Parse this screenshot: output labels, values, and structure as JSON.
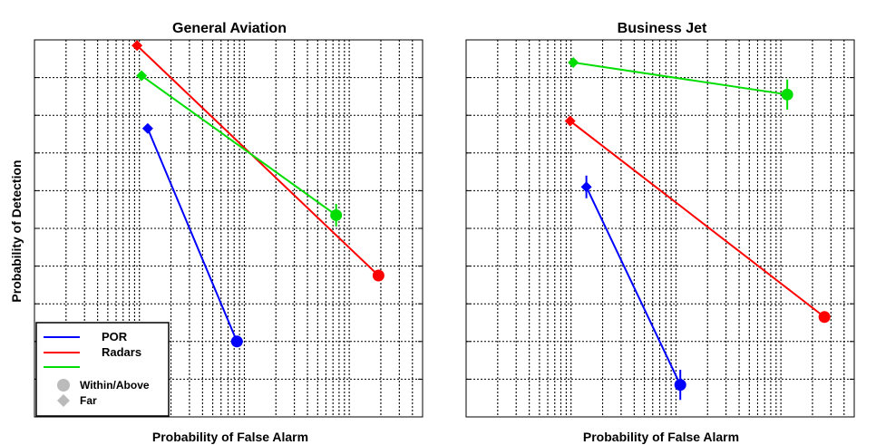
{
  "chart_data": [
    {
      "type": "scatter",
      "title": "General Aviation",
      "xlabel": "Probability of False Alarm",
      "ylabel": "Probability of Detection",
      "xscale": "log",
      "grid": true,
      "legend": {
        "placement": "bottom-left",
        "entries": [
          {
            "label": "POR",
            "color": "#0000ff",
            "kind": "line"
          },
          {
            "label": "Radars",
            "color": "#ff0000",
            "kind": "line"
          },
          {
            "label": "",
            "color": "#00dd00",
            "kind": "line"
          },
          {
            "label": "Within/Above",
            "color": "#bbbbbb",
            "kind": "circle-marker"
          },
          {
            "label": "Far",
            "color": "#bbbbbb",
            "kind": "diamond-marker"
          }
        ]
      },
      "series": [
        {
          "color": "#0000ff",
          "points": [
            {
              "x": 0.0012,
              "y": 0.765,
              "marker": "diamond",
              "err": 0.006
            },
            {
              "x": 0.0085,
              "y": 0.2,
              "marker": "circle",
              "err": 0.008
            }
          ]
        },
        {
          "color": "#ff0000",
          "points": [
            {
              "x": 0.00095,
              "y": 0.985,
              "marker": "diamond",
              "err": 0
            },
            {
              "x": 0.19,
              "y": 0.375,
              "marker": "circle",
              "err": 0.008
            }
          ]
        },
        {
          "color": "#00dd00",
          "points": [
            {
              "x": 0.00105,
              "y": 0.905,
              "marker": "diamond",
              "err": 0.01
            },
            {
              "x": 0.075,
              "y": 0.535,
              "marker": "circle",
              "err": 0.03
            }
          ]
        }
      ]
    },
    {
      "type": "scatter",
      "title": "Business Jet",
      "xlabel": "Probability of False Alarm",
      "ylabel": "",
      "xscale": "log",
      "grid": true,
      "series": [
        {
          "color": "#0000ff",
          "points": [
            {
              "x": 0.0014,
              "y": 0.61,
              "marker": "diamond",
              "err": 0.03
            },
            {
              "x": 0.011,
              "y": 0.085,
              "marker": "circle",
              "err": 0.04
            }
          ]
        },
        {
          "color": "#ff0000",
          "points": [
            {
              "x": 0.00098,
              "y": 0.785,
              "marker": "diamond",
              "err": 0
            },
            {
              "x": 0.26,
              "y": 0.265,
              "marker": "circle",
              "err": 0.008
            }
          ]
        },
        {
          "color": "#00dd00",
          "points": [
            {
              "x": 0.00105,
              "y": 0.94,
              "marker": "diamond",
              "err": 0
            },
            {
              "x": 0.115,
              "y": 0.855,
              "marker": "circle",
              "err": 0.04
            }
          ]
        }
      ]
    }
  ]
}
